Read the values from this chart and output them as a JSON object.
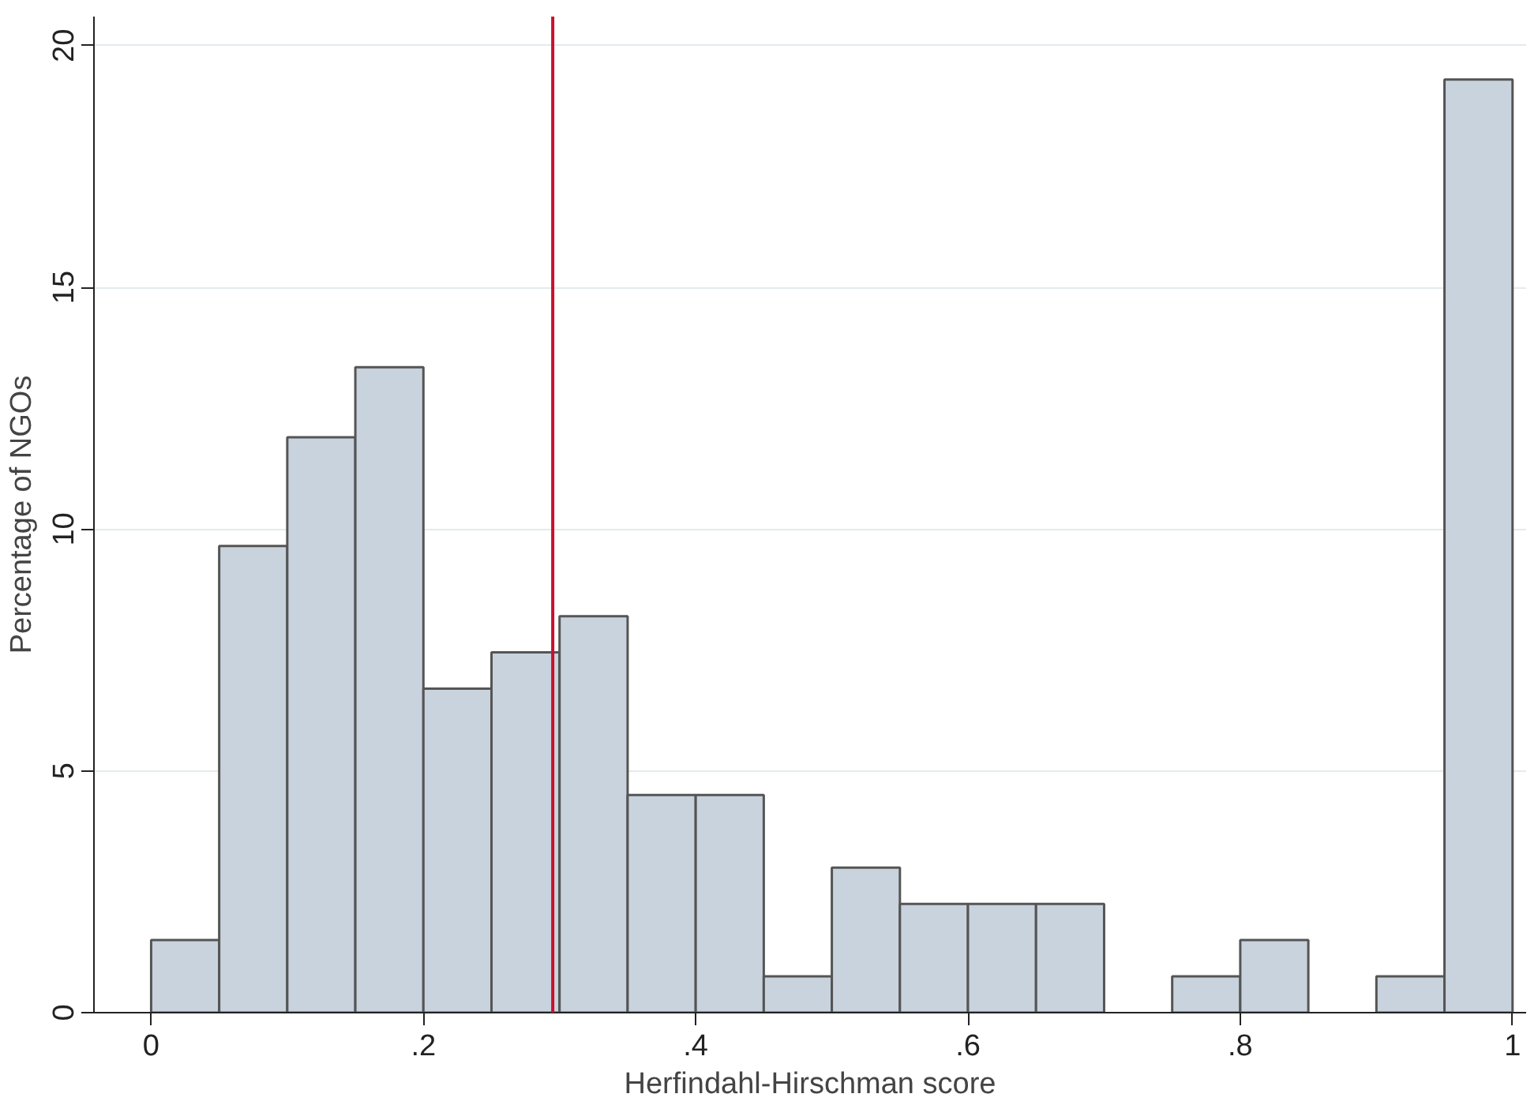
{
  "chart_data": {
    "type": "histogram",
    "xlabel": "Herfindahl-Hirschman score",
    "ylabel": "Percentage of NGOs",
    "bins": [
      0,
      0.05,
      0.1,
      0.15,
      0.2,
      0.25,
      0.3,
      0.35,
      0.4,
      0.45,
      0.5,
      0.55,
      0.6,
      0.65,
      0.7,
      0.75,
      0.8,
      0.85,
      0.9,
      0.95,
      1
    ],
    "values": [
      1.5,
      9.65,
      11.9,
      13.35,
      6.7,
      7.45,
      8.2,
      4.5,
      4.5,
      0.75,
      3.0,
      2.25,
      2.25,
      2.25,
      0,
      0.75,
      1.5,
      0,
      0.75,
      19.3
    ],
    "color": "#c9d3de",
    "xlim": [
      -0.042,
      1.01
    ],
    "ylim": [
      0,
      20.6
    ],
    "xticks": [
      0,
      {
        "value": 0.2,
        "label": ".2"
      },
      {
        "value": 0.4,
        "label": ".4"
      },
      {
        "value": 0.6,
        "label": ".6"
      },
      {
        "value": 0.8,
        "label": ".8"
      },
      1
    ],
    "yticks": [
      0,
      5,
      10,
      15,
      20
    ],
    "grid": "y",
    "ref_lines": [
      {
        "axis": "x",
        "value": 0.295,
        "color": "#c8102e"
      }
    ]
  }
}
